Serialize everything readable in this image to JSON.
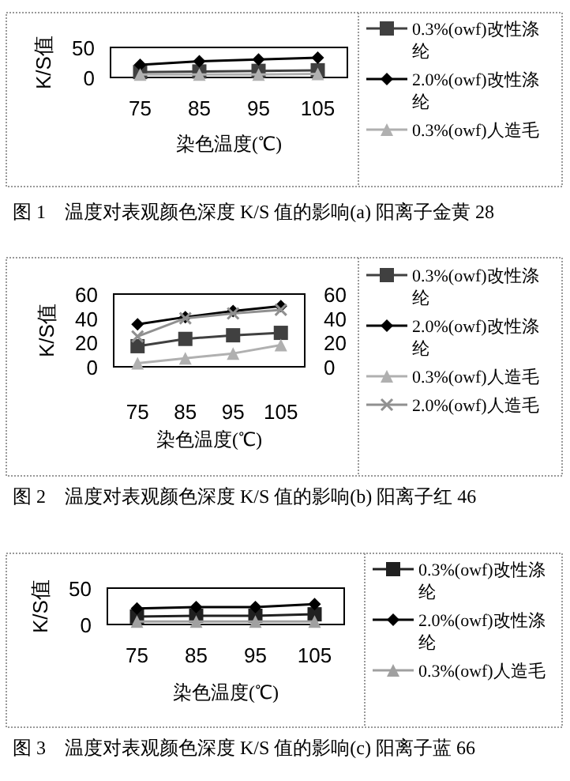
{
  "chart_data": [
    {
      "type": "line",
      "title": "图 1　温度对表观颜色深度 K/S 值的影响(a) 阳离子金黄 28",
      "xlabel": "染色温度(℃)",
      "ylabel": "K/S值",
      "categories": [
        "75",
        "85",
        "95",
        "105"
      ],
      "ylim": [
        0,
        50
      ],
      "yticks": [
        0,
        50
      ],
      "grid": false,
      "legend": "right",
      "series": [
        {
          "name": "0.3%(owf)改性涤纶",
          "color": "#404040",
          "marker": "square",
          "values": [
            9,
            10,
            11,
            12
          ]
        },
        {
          "name": "2.0%(owf)改性涤纶",
          "color": "#000000",
          "marker": "diamond",
          "values": [
            21,
            27,
            30,
            33
          ]
        },
        {
          "name": "0.3%(owf)人造毛",
          "color": "#b0b0b0",
          "marker": "triangle",
          "values": [
            5,
            5,
            5,
            6
          ]
        }
      ]
    },
    {
      "type": "line",
      "title": "图 2　温度对表观颜色深度 K/S 值的影响(b) 阳离子红 46",
      "xlabel": "染色温度(℃)",
      "ylabel": "K/S值",
      "categories": [
        "75",
        "85",
        "95",
        "105"
      ],
      "ylim": [
        0,
        60
      ],
      "yticks": [
        0,
        20,
        40,
        60
      ],
      "y2lim": [
        0,
        60
      ],
      "y2ticks": [
        0,
        20,
        40,
        60
      ],
      "grid": false,
      "legend": "right",
      "series": [
        {
          "name": "0.3%(owf)改性涤纶",
          "color": "#404040",
          "marker": "square",
          "values": [
            17,
            23,
            26,
            28
          ]
        },
        {
          "name": "2.0%(owf)改性涤纶",
          "color": "#000000",
          "marker": "diamond",
          "values": [
            35,
            41,
            46,
            50
          ]
        },
        {
          "name": "0.3%(owf)人造毛",
          "color": "#b0b0b0",
          "marker": "triangle",
          "values": [
            3,
            7,
            11,
            18
          ]
        },
        {
          "name": "2.0%(owf)人造毛",
          "color": "#909090",
          "marker": "cross",
          "values": [
            25,
            40,
            44,
            47
          ]
        }
      ]
    },
    {
      "type": "line",
      "title": "图 3　温度对表观颜色深度 K/S 值的影响(c) 阳离子蓝 66",
      "xlabel": "染色温度(℃)",
      "ylabel": "K/S值",
      "categories": [
        "75",
        "85",
        "95",
        "105"
      ],
      "ylim": [
        0,
        50
      ],
      "yticks": [
        0,
        50
      ],
      "grid": false,
      "legend": "right",
      "series": [
        {
          "name": "0.3%(owf)改性涤纶",
          "color": "#202020",
          "marker": "square",
          "values": [
            11,
            12,
            12,
            14
          ]
        },
        {
          "name": "2.0%(owf)改性涤纶",
          "color": "#000000",
          "marker": "diamond",
          "values": [
            22,
            24,
            24,
            28
          ]
        },
        {
          "name": "0.3%(owf)人造毛",
          "color": "#a0a0a0",
          "marker": "triangle",
          "values": [
            4,
            4,
            4,
            4
          ]
        }
      ]
    }
  ]
}
